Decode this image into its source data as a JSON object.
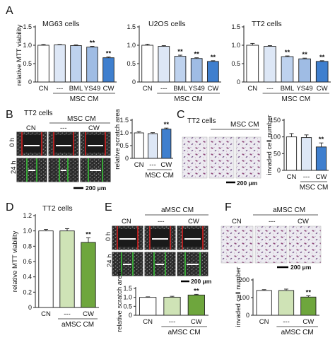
{
  "colors": {
    "white": "#ffffff",
    "blue_light": "#dde7f6",
    "blue_mid": "#bed2ee",
    "blue_mid2": "#9fbce4",
    "blue_dark": "#3f7fce",
    "green_light": "#cfe3b6",
    "green_dark": "#6ea63d",
    "axis": "#222222",
    "scratch_red": "#d62020",
    "scratch_green": "#38c238",
    "stain": "#8e4a7c"
  },
  "panel_labels": {
    "A": "A",
    "B": "B",
    "C": "C",
    "D": "D",
    "E": "E",
    "F": "F"
  },
  "text": {
    "tt2_cells": "TT2 cells",
    "msc_cm": "MSC CM",
    "amsc_cm": "aMSC CM",
    "cn": "CN",
    "dash": "---",
    "cw": "CW",
    "h0": "0 h",
    "h24": "24 h",
    "scale_200": "200 μm"
  },
  "chart_data": [
    {
      "id": "A1",
      "type": "bar",
      "title": "MG63 cells",
      "categories": [
        "CN",
        "---",
        "BML",
        "YS49",
        "CW"
      ],
      "values": [
        1.0,
        1.01,
        0.99,
        0.95,
        0.66
      ],
      "errors": [
        0.02,
        0.01,
        0.02,
        0.02,
        0.02
      ],
      "significance": [
        "",
        "",
        "",
        "**",
        "**"
      ],
      "ylabel": "relative MTT viability",
      "ylim": [
        0,
        1.5
      ],
      "yticks": [
        "0",
        "0.5",
        "1.0",
        "1.5"
      ],
      "group_label": "MSC CM",
      "colors": [
        "#ffffff",
        "#dde7f6",
        "#bed2ee",
        "#9fbce4",
        "#3f7fce"
      ]
    },
    {
      "id": "A2",
      "type": "bar",
      "title": "U2OS cells",
      "categories": [
        "CN",
        "---",
        "BML",
        "YS49",
        "CW"
      ],
      "values": [
        1.0,
        0.97,
        0.7,
        0.64,
        0.56
      ],
      "errors": [
        0.03,
        0.02,
        0.03,
        0.02,
        0.02
      ],
      "significance": [
        "",
        "",
        "**",
        "**",
        "**"
      ],
      "ylabel": "",
      "ylim": [
        0,
        1.5
      ],
      "yticks": [
        "0",
        "0.5",
        "1.0",
        "1.5"
      ],
      "group_label": "MSC CM",
      "colors": [
        "#ffffff",
        "#dde7f6",
        "#bed2ee",
        "#9fbce4",
        "#3f7fce"
      ]
    },
    {
      "id": "A3",
      "type": "bar",
      "title": "TT2 cells",
      "categories": [
        "CN",
        "---",
        "BML",
        "YS49",
        "CW"
      ],
      "values": [
        1.0,
        0.97,
        0.69,
        0.63,
        0.56
      ],
      "errors": [
        0.05,
        0.02,
        0.02,
        0.02,
        0.02
      ],
      "significance": [
        "",
        "",
        "**",
        "**",
        "**"
      ],
      "ylabel": "",
      "ylim": [
        0,
        1.5
      ],
      "yticks": [
        "0",
        "0.5",
        "1.0",
        "1.5"
      ],
      "group_label": "MSC CM",
      "colors": [
        "#ffffff",
        "#dde7f6",
        "#bed2ee",
        "#9fbce4",
        "#3f7fce"
      ]
    },
    {
      "id": "B",
      "type": "bar",
      "title": "",
      "categories": [
        "CN",
        "---",
        "CW"
      ],
      "values": [
        1.0,
        0.97,
        1.15
      ],
      "errors": [
        0.05,
        0.04,
        0.04
      ],
      "significance": [
        "",
        "",
        "**"
      ],
      "ylabel": "relative scratch area",
      "ylim": [
        0,
        1.5
      ],
      "yticks": [
        "0",
        "0.5",
        "1.0",
        "1.5"
      ],
      "group_label": "MSC CM",
      "colors": [
        "#ffffff",
        "#dde7f6",
        "#3f7fce"
      ]
    },
    {
      "id": "C",
      "type": "bar",
      "title": "",
      "categories": [
        "CN",
        "---",
        "CW"
      ],
      "values": [
        100,
        98,
        70
      ],
      "errors": [
        10,
        8,
        12
      ],
      "significance": [
        "",
        "",
        "**"
      ],
      "ylabel": "invaded cell number",
      "ylim": [
        0,
        150
      ],
      "yticks": [
        "0",
        "50",
        "100",
        "150"
      ],
      "group_label": "MSC CM",
      "colors": [
        "#ffffff",
        "#dde7f6",
        "#3f7fce"
      ]
    },
    {
      "id": "D",
      "type": "bar",
      "title": "TT2 cells",
      "categories": [
        "CN",
        "---",
        "CW"
      ],
      "values": [
        1.0,
        1.0,
        0.85
      ],
      "errors": [
        0.02,
        0.03,
        0.06
      ],
      "significance": [
        "",
        "",
        "**"
      ],
      "ylabel": "relative MTT viability",
      "ylim": [
        0,
        1.2
      ],
      "yticks": [
        "0",
        "0.2",
        "0.4",
        "0.6",
        "0.8",
        "1.0",
        "1.2"
      ],
      "group_label": "aMSC CM",
      "colors": [
        "#ffffff",
        "#cfe3b6",
        "#6ea63d"
      ]
    },
    {
      "id": "E",
      "type": "bar",
      "title": "",
      "categories": [
        "CN",
        "---",
        "CW"
      ],
      "values": [
        1.0,
        1.01,
        1.13
      ],
      "errors": [
        0.03,
        0.05,
        0.04
      ],
      "significance": [
        "",
        "",
        "**"
      ],
      "ylabel": "relative scratch area",
      "ylim": [
        0,
        1.5
      ],
      "yticks": [
        "0",
        "0.5",
        "1.0",
        "1.5"
      ],
      "group_label": "aMSC CM",
      "colors": [
        "#ffffff",
        "#cfe3b6",
        "#6ea63d"
      ]
    },
    {
      "id": "F",
      "type": "bar",
      "title": "",
      "categories": [
        "CN",
        "---",
        "CW"
      ],
      "values": [
        140,
        140,
        103
      ],
      "errors": [
        5,
        8,
        7
      ],
      "significance": [
        "",
        "",
        "**"
      ],
      "ylabel": "invaded cell number",
      "ylim": [
        0,
        200
      ],
      "yticks": [
        "0",
        "100",
        "200"
      ],
      "group_label": "aMSC CM",
      "colors": [
        "#ffffff",
        "#cfe3b6",
        "#6ea63d"
      ]
    }
  ]
}
